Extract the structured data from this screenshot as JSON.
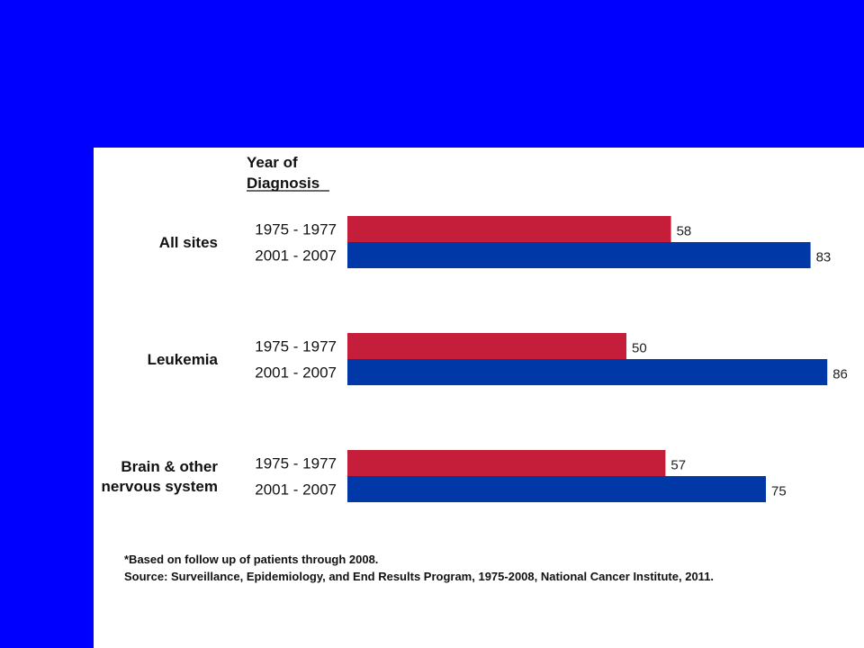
{
  "chart_data": {
    "type": "bar",
    "orientation": "horizontal",
    "header": "Year of Diagnosis",
    "categories": [
      "All sites",
      "Leukemia",
      "Brain & other nervous system"
    ],
    "category_lines": [
      [
        "All sites"
      ],
      [
        "Leukemia"
      ],
      [
        "Brain & other",
        "nervous system"
      ]
    ],
    "series": [
      {
        "name": "1975 - 1977",
        "color": "#c41e3a",
        "values": [
          58,
          50,
          57
        ]
      },
      {
        "name": "2001 - 2007",
        "color": "#0038a8",
        "values": [
          83,
          86,
          75
        ]
      }
    ],
    "xlim": [
      0,
      100
    ],
    "grid": false,
    "axes_visible": false,
    "legend": "none"
  },
  "colors": {
    "background": "#0000ff",
    "panel": "#ffffff"
  },
  "footnotes": {
    "line1": "*Based on follow up of patients through 2008.",
    "line2": "Source: Surveillance, Epidemiology, and End Results Program, 1975-2008,  National Cancer Institute, 2011."
  }
}
